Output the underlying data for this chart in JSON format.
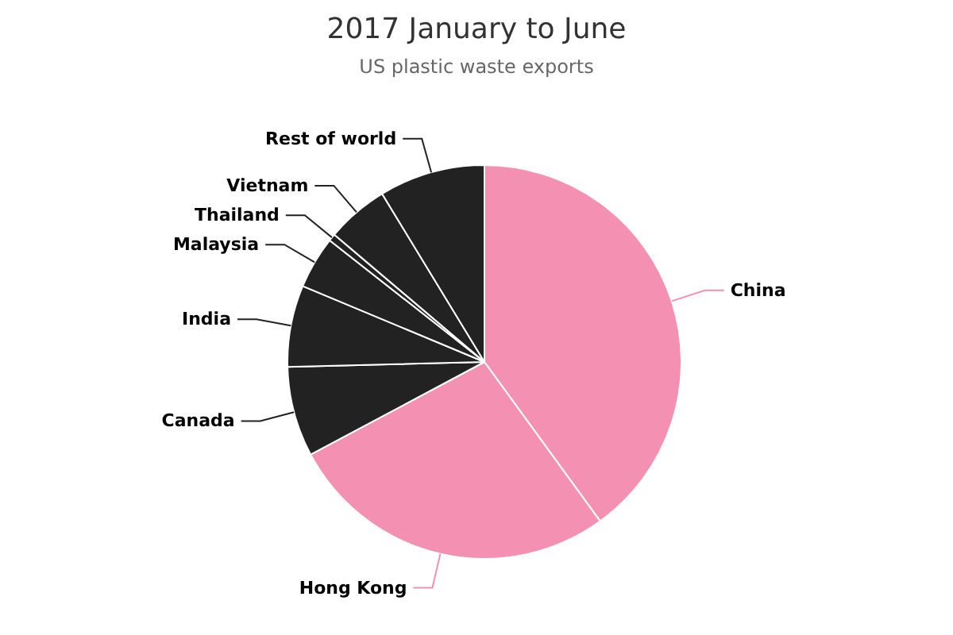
{
  "chart_data": {
    "type": "pie",
    "title": "2017 January to June",
    "subtitle": "US plastic waste exports",
    "categories": [
      "China",
      "Hong Kong",
      "Canada",
      "India",
      "Malaysia",
      "Thailand",
      "Vietnam",
      "Rest of world"
    ],
    "values": [
      40,
      27.2,
      7.4,
      6.7,
      4.3,
      0.6,
      5.1,
      8.7
    ],
    "colors": [
      "#f490b2",
      "#f490b2",
      "#222222",
      "#222222",
      "#222222",
      "#222222",
      "#222222",
      "#222222"
    ]
  }
}
